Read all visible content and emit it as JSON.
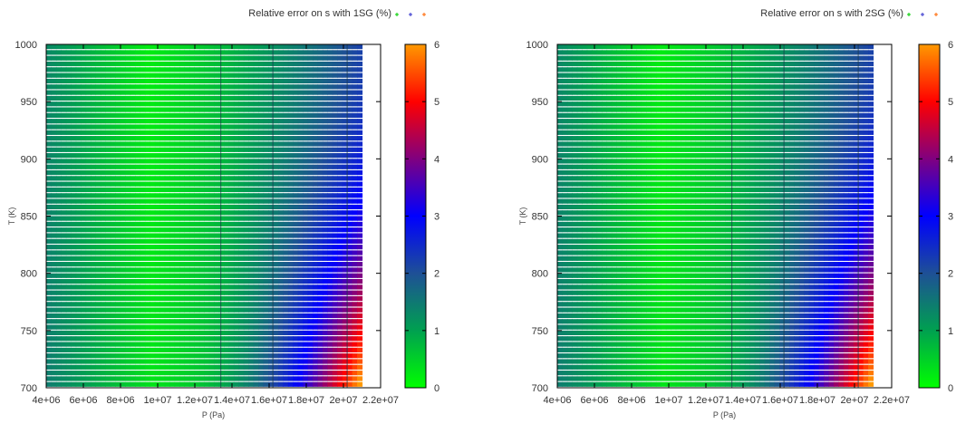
{
  "chart_data": [
    {
      "type": "heatmap",
      "title": "Relative error on s with 1SG (%)",
      "xlabel": "P (Pa)",
      "ylabel": "T (K)",
      "xlim": [
        4000000,
        22000000
      ],
      "ylim": [
        700,
        1000
      ],
      "x_ticks": [
        "4e+06",
        "6e+06",
        "8e+06",
        "1e+07",
        "1.2e+07",
        "1.4e+07",
        "1.6e+07",
        "1.8e+07",
        "2e+07",
        "2.2e+07"
      ],
      "y_ticks": [
        "700",
        "750",
        "800",
        "850",
        "900",
        "950",
        "1000"
      ],
      "data_extent": {
        "p_min": 4000000,
        "p_max": 21000000,
        "t_min": 700,
        "t_max": 1000
      },
      "colorbar": {
        "min": 0,
        "max": 6,
        "ticks": [
          "0",
          "1",
          "2",
          "3",
          "4",
          "5",
          "6"
        ],
        "colors": [
          "#00ff00",
          "#00a050",
          "#1e5096",
          "#0000ff",
          "#800080",
          "#ff0000",
          "#ff9900"
        ]
      },
      "error_model": {
        "min_error_pressure": 9500000,
        "base_error_at_T1000": 0.3,
        "max_error": 6.2,
        "min_error": 0.2
      },
      "vertical_lines": [
        13400000,
        16200000,
        20200000
      ],
      "legend_marks": [
        "#00cc00",
        "#3333cc",
        "#ff6600"
      ]
    },
    {
      "type": "heatmap",
      "title": "Relative error on s with 2SG (%)",
      "xlabel": "P (Pa)",
      "ylabel": "T (K)",
      "xlim": [
        4000000,
        22000000
      ],
      "ylim": [
        700,
        1000
      ],
      "x_ticks": [
        "4e+06",
        "6e+06",
        "8e+06",
        "1e+07",
        "1.2e+07",
        "1.4e+07",
        "1.6e+07",
        "1.8e+07",
        "2e+07",
        "2.2e+07"
      ],
      "y_ticks": [
        "700",
        "750",
        "800",
        "850",
        "900",
        "950",
        "1000"
      ],
      "data_extent": {
        "p_min": 4000000,
        "p_max": 21000000,
        "t_min": 700,
        "t_max": 1000
      },
      "colorbar": {
        "min": 0,
        "max": 6,
        "ticks": [
          "0",
          "1",
          "2",
          "3",
          "4",
          "5",
          "6"
        ],
        "colors": [
          "#00ff00",
          "#00a050",
          "#1e5096",
          "#0000ff",
          "#800080",
          "#ff0000",
          "#ff9900"
        ]
      },
      "error_model": {
        "min_error_pressure": 9500000,
        "base_error_at_T1000": 0.3,
        "max_error": 6.2,
        "min_error": 0.2
      },
      "vertical_lines": [
        13400000,
        16200000,
        20200000
      ],
      "legend_marks": [
        "#00cc00",
        "#3333cc",
        "#ff6600"
      ]
    }
  ]
}
